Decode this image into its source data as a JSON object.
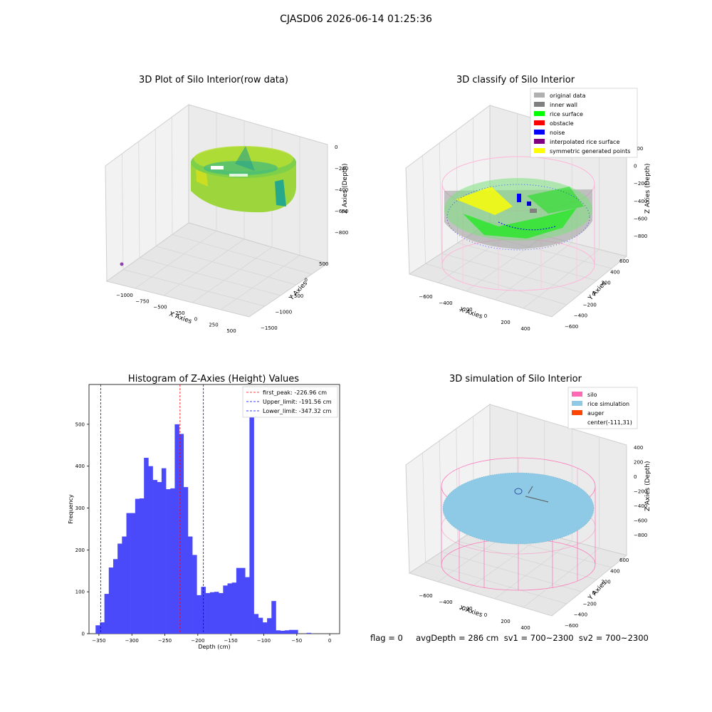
{
  "figure": {
    "suptitle": "CJASD06 2026-06-14 01:25:36",
    "footer": "flag = 0     avgDepth = 286 cm  sv1 = 700~2300  sv2 = 700~2300"
  },
  "colors": {
    "hist_bar": "#4a4afa",
    "first_peak_line": "#ff0000",
    "limit_line": "#0000ff",
    "grid": "#d0d0d0",
    "silo": "#ff69b4",
    "rice_simulation": "#8ecae6",
    "auger": "#ff4500"
  },
  "panels": {
    "raw": {
      "title": "3D Plot of Silo Interior(row data)",
      "xlabel": "X Axies",
      "ylabel": "Y Axies",
      "zlabel": "Z Axies (Depth)",
      "xticks": [
        "−1000",
        "−750",
        "−500",
        "−250",
        "0",
        "250",
        "500"
      ],
      "yticks": [
        "500",
        "0",
        "−500",
        "−1000",
        "−1500"
      ],
      "zticks": [
        "0",
        "−200",
        "−400",
        "−600",
        "−800"
      ]
    },
    "classify": {
      "title": "3D classify of Silo Interior",
      "xlabel": "X Axies",
      "ylabel": "Y Axies",
      "zlabel": "Z Axies (Depth)",
      "xticks": [
        "−600",
        "−400",
        "−200",
        "0",
        "200",
        "400"
      ],
      "yticks": [
        "600",
        "400",
        "200",
        "0",
        "−200",
        "−400",
        "−600"
      ],
      "zticks": [
        "200",
        "0",
        "−200",
        "−400",
        "−600",
        "−800"
      ],
      "legend": [
        {
          "label": "original data",
          "color": "#b0b0b0"
        },
        {
          "label": "inner wall",
          "color": "#808080"
        },
        {
          "label": "rice surface",
          "color": "#00ff00"
        },
        {
          "label": "obstacle",
          "color": "#ff0000"
        },
        {
          "label": "noise",
          "color": "#0000ff"
        },
        {
          "label": "interpolated rice surface",
          "color": "#800080"
        },
        {
          "label": "symmetric generated points",
          "color": "#ffff00"
        }
      ]
    },
    "simulation": {
      "title": "3D simulation of Silo Interior",
      "xlabel": "X Axies",
      "ylabel": "Y Axies",
      "zlabel": "Z Axies (Depth)",
      "xticks": [
        "−600",
        "−400",
        "−200",
        "0",
        "200",
        "400"
      ],
      "yticks": [
        "600",
        "400",
        "200",
        "0",
        "−200",
        "−400",
        "−600"
      ],
      "zticks": [
        "400",
        "200",
        "0",
        "−200",
        "−400",
        "−600",
        "−800"
      ],
      "legend": [
        {
          "label": "silo",
          "color": "#ff69b4"
        },
        {
          "label": "rice simulation",
          "color": "#8ecae6"
        },
        {
          "label": "auger",
          "color": "#ff4500"
        },
        {
          "label": "center(-111,31)",
          "color": ""
        }
      ]
    }
  },
  "chart_data": {
    "type": "bar",
    "title": "Histogram of Z-Axies (Height) Values",
    "xlabel": "Depth (cm)",
    "ylabel": "Frequency",
    "xlim": [
      -365,
      15
    ],
    "ylim": [
      0,
      595
    ],
    "xticks": [
      -350,
      -300,
      -250,
      -200,
      -150,
      -100,
      -50,
      0
    ],
    "xtick_labels": [
      "−350",
      "−300",
      "−250",
      "−200",
      "−150",
      "−100",
      "−50",
      "0"
    ],
    "yticks": [
      0,
      100,
      200,
      300,
      400,
      500
    ],
    "bin_width": 6.67,
    "bin_starts": [
      -355,
      -348.33,
      -341.67,
      -335,
      -328.33,
      -321.67,
      -315,
      -308.33,
      -301.67,
      -295,
      -288.33,
      -281.67,
      -275,
      -268.33,
      -261.67,
      -255,
      -248.33,
      -241.67,
      -235,
      -228.33,
      -221.67,
      -215,
      -208.33,
      -201.67,
      -195,
      -188.33,
      -181.67,
      -175,
      -168.33,
      -161.67,
      -155,
      -148.33,
      -141.67,
      -135,
      -128.33,
      -121.67,
      -115,
      -108.33,
      -101.67,
      -95,
      -88.33,
      -81.67,
      -75,
      -68.33,
      -61.67,
      -55,
      -48.33,
      -41.67,
      -35,
      -28.33,
      -21.67,
      -15,
      -8.33,
      -1.67
    ],
    "counts": [
      20,
      27,
      95,
      158,
      178,
      215,
      232,
      288,
      288,
      322,
      323,
      420,
      400,
      367,
      362,
      395,
      345,
      347,
      500,
      477,
      350,
      232,
      188,
      92,
      112,
      97,
      99,
      100,
      97,
      115,
      120,
      122,
      157,
      157,
      135,
      560,
      47,
      38,
      27,
      37,
      78,
      8,
      7,
      8,
      9,
      9,
      0,
      0,
      2,
      0,
      0,
      0,
      0,
      0
    ],
    "vlines": [
      {
        "x": -226.96,
        "label": "first_peak: -226.96 cm",
        "color": "#ff0000"
      },
      {
        "x": -191.56,
        "label": "Upper_limit: -191.56 cm",
        "color": "#0000ff"
      },
      {
        "x": -347.32,
        "label": "Lower_limit: -347.32 cm",
        "color": "#0000ff"
      }
    ],
    "legend_position": "top-right"
  }
}
